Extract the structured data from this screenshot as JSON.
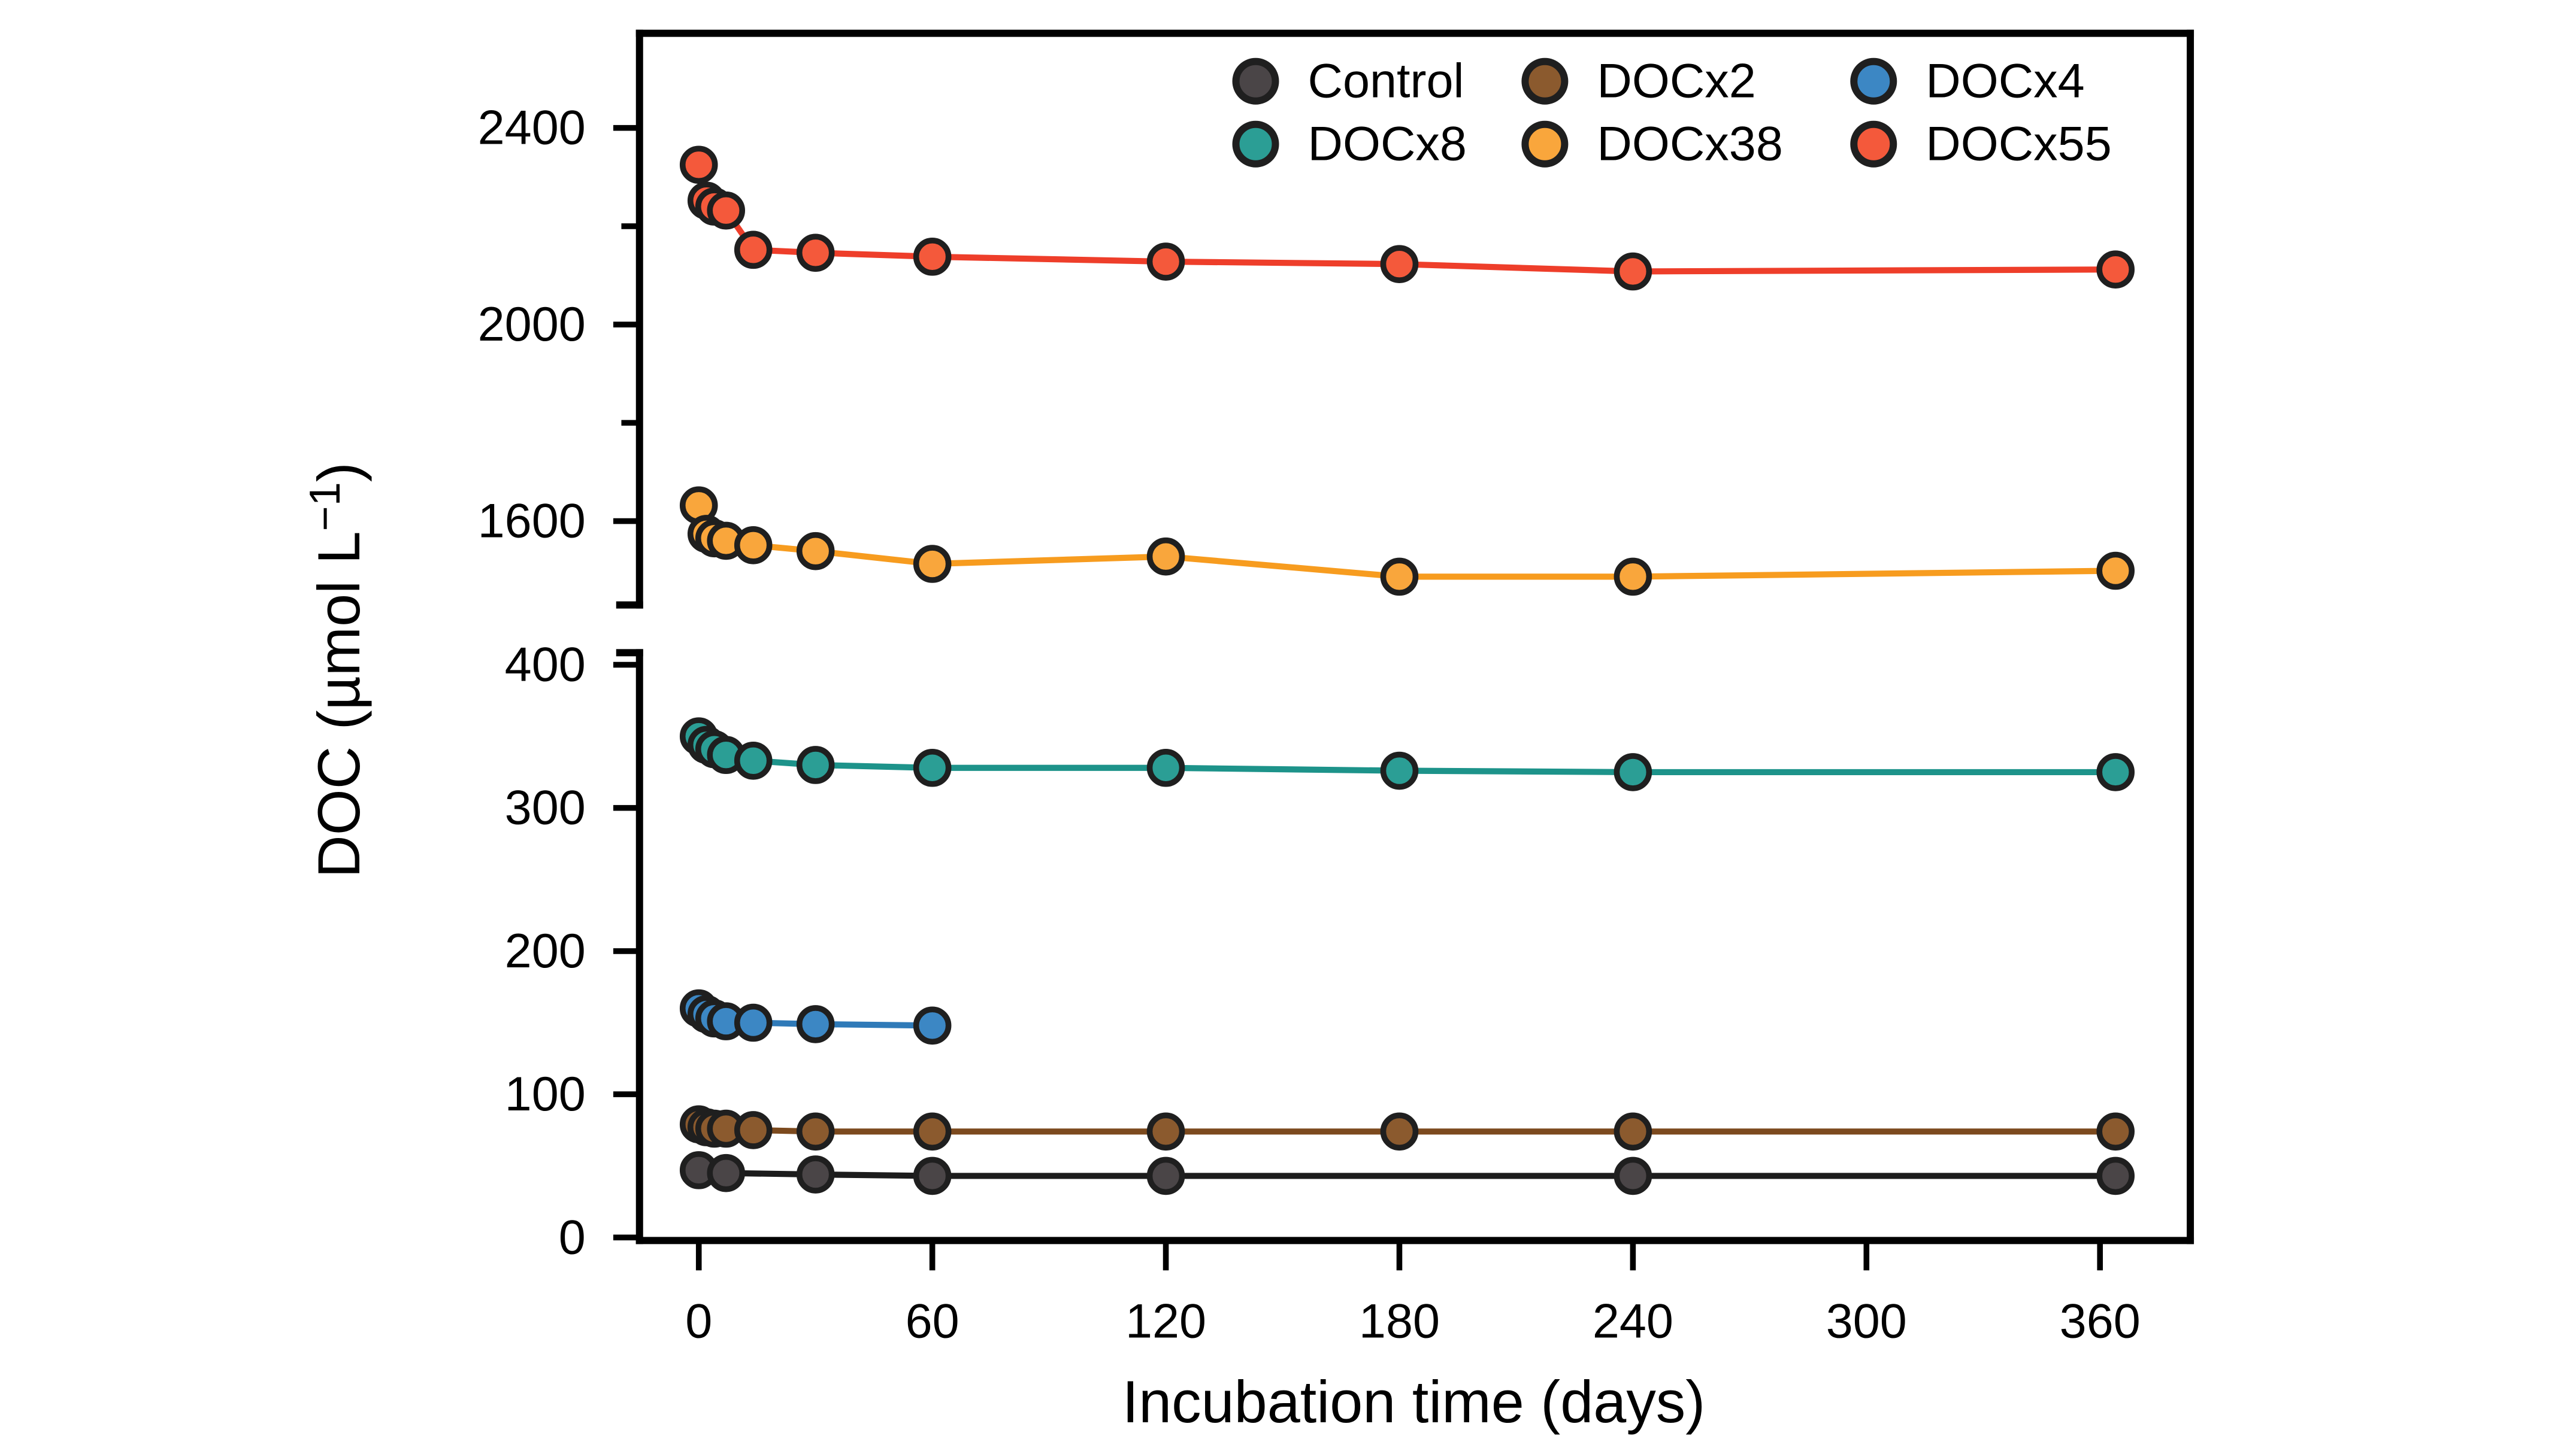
{
  "figure": {
    "background": "#ffffff",
    "frame_color": "#000000",
    "text_color": "#000000"
  },
  "chart_data": {
    "type": "line",
    "title": "",
    "xlabel": "Incubation time (days)",
    "ylabel": "DOC (µmol L−1)",
    "ylabel_parts": {
      "prefix": "DOC (µmol L",
      "sup": "−1",
      "suffix": ")"
    },
    "x_ticks": [
      0,
      60,
      120,
      180,
      240,
      300,
      360
    ],
    "x_range_days": [
      -15,
      383
    ],
    "broken_y_axis": true,
    "grid": "off",
    "legend": {
      "position": "top-right-inside",
      "rows": [
        [
          "Control",
          "DOCx2",
          "DOCx4"
        ],
        [
          "DOCx8",
          "DOCx38",
          "DOCx55"
        ]
      ]
    },
    "panels": {
      "top": {
        "y_ticks": [
          2400,
          2000,
          1600
        ],
        "y_minor_ticks": [
          2200,
          1800
        ],
        "y_range": [
          1430,
          2590
        ]
      },
      "bottom": {
        "y_ticks": [
          400,
          300,
          200,
          100,
          0
        ],
        "y_minor_ticks": [],
        "y_range": [
          0,
          408
        ]
      }
    },
    "series": [
      {
        "name": "Control",
        "panel": "bottom",
        "fill": "#4a4547",
        "line": "#1c1c1c",
        "days": [
          0,
          7,
          30,
          60,
          120,
          240,
          364
        ],
        "values": [
          47,
          45,
          44,
          43,
          43,
          43,
          43
        ]
      },
      {
        "name": "DOCx2",
        "panel": "bottom",
        "fill": "#8b5a2e",
        "line": "#7c4a1e",
        "days": [
          0,
          2,
          4,
          7,
          14,
          30,
          60,
          120,
          180,
          240,
          364
        ],
        "values": [
          79,
          77,
          76,
          76,
          75,
          74,
          74,
          74,
          74,
          74,
          74
        ]
      },
      {
        "name": "DOCx4",
        "panel": "bottom",
        "fill": "#3c87c4",
        "line": "#2f7ab8",
        "days": [
          0,
          2,
          4,
          7,
          14,
          30,
          60
        ],
        "values": [
          160,
          156,
          153,
          151,
          150,
          149,
          148
        ]
      },
      {
        "name": "DOCx8",
        "panel": "bottom",
        "fill": "#2b9e95",
        "line": "#1d938a",
        "days": [
          0,
          2,
          4,
          7,
          14,
          30,
          60,
          120,
          180,
          240,
          364
        ],
        "values": [
          350,
          344,
          341,
          337,
          333,
          330,
          328,
          328,
          326,
          325,
          325
        ]
      },
      {
        "name": "DOCx38",
        "panel": "top",
        "fill": "#f9a63c",
        "line": "#f79c1f",
        "days": [
          0,
          2,
          4,
          7,
          14,
          30,
          60,
          120,
          180,
          240,
          364
        ],
        "values": [
          1632,
          1574,
          1565,
          1560,
          1551,
          1539,
          1513,
          1528,
          1487,
          1487,
          1499
        ]
      },
      {
        "name": "DOCx55",
        "panel": "top",
        "fill": "#f4593b",
        "line": "#ee3e2a",
        "days": [
          0,
          2,
          4,
          7,
          14,
          30,
          60,
          120,
          180,
          240,
          364
        ],
        "values": [
          2325,
          2252,
          2240,
          2232,
          2152,
          2146,
          2138,
          2128,
          2123,
          2108,
          2112
        ]
      }
    ],
    "marker_outline": "#1f1f1f"
  }
}
